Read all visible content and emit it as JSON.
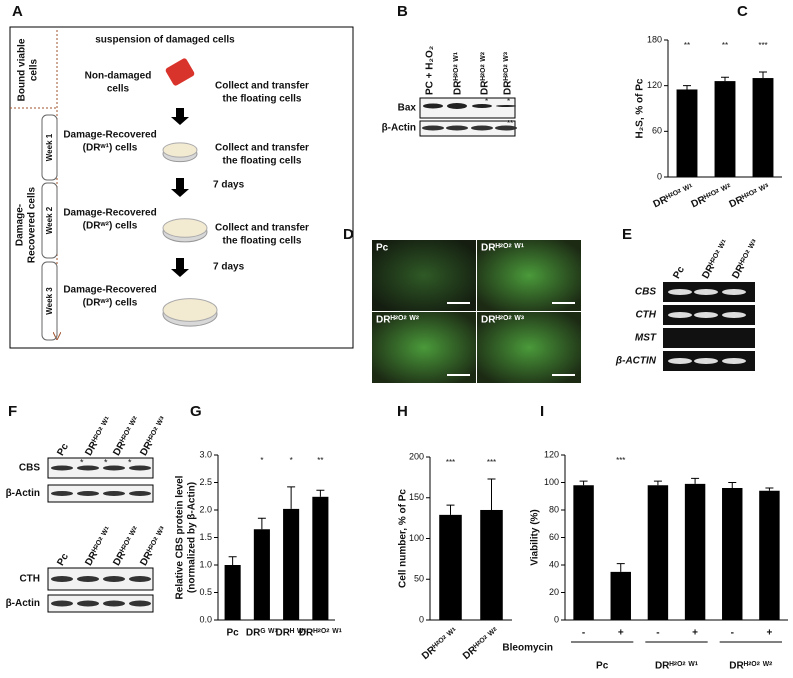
{
  "figure": {
    "A": {
      "label": "A",
      "header": "suspension of damaged cells",
      "side_top": [
        "Bound viable",
        "cells"
      ],
      "side_bottom": [
        "Damage-",
        "Recovered cells"
      ],
      "weeks": [
        "Week 1",
        "Week 2",
        "Week 3"
      ],
      "stages": [
        [
          "Non-damaged",
          "cells"
        ],
        [
          "Damage-Recovered",
          "(DRʷ¹) cells"
        ],
        [
          "Damage-Recovered",
          "(DRʷ²) cells"
        ],
        [
          "Damage-Recovered",
          "(DRʷ³) cells"
        ]
      ],
      "actions": [
        [
          "Collect and transfer",
          "the floating cells"
        ],
        [
          "Collect and transfer",
          "the floating cells"
        ],
        [
          "Collect and transfer",
          "the floating cells"
        ]
      ],
      "intervals": [
        "7 days",
        "7 days"
      ]
    },
    "B": {
      "label": "B",
      "lanes": [
        "PC + H₂O₂",
        "DRᴴ²ᴼ² ᵂ¹",
        "DRᴴ²ᴼ² ᵂ²",
        "DRᴴ²ᴼ² ᵂ³"
      ],
      "rows": [
        "Bax",
        "β-Actin"
      ],
      "marks": [
        "*",
        "*",
        "**"
      ]
    },
    "D": {
      "label": "D",
      "images": [
        "Pc",
        "DRᴴ²ᴼ² ᵂ¹",
        "DRᴴ²ᴼ² ᵂ²",
        "DRᴴ²ᴼ² ᵂ³"
      ]
    },
    "E": {
      "label": "E",
      "lanes": [
        "Pc",
        "DRᴴ²ᴼ² ᵂ¹",
        "DRᴴ²ᴼ² ᵂ³"
      ],
      "rows": [
        "CBS",
        "CTH",
        "MST",
        "β-ACTIN"
      ]
    },
    "F": {
      "label": "F",
      "lanes_top": [
        "Pc",
        "DRᴴ²ᴼ² ᵂ¹",
        "DRᴴ²ᴼ² ᵂ²",
        "DRᴴ²ᴼ² ᵂ³"
      ],
      "rows_top": [
        "CBS",
        "β-Actin"
      ],
      "marks": [
        "*",
        "*",
        "*"
      ],
      "lanes_bottom": [
        "Pc",
        "DRᴴ²ᴼ² ᵂ¹",
        "DRᴴ²ᴼ² ᵂ²",
        "DRᴴ²ᴼ² ᵂ³"
      ],
      "rows_bottom": [
        "CTH",
        "β-Actin"
      ]
    }
  },
  "chart_data": [
    {
      "panel": "C",
      "type": "bar",
      "ylabel": "H₂S, % of Pc",
      "categories": [
        "DRᴴ²ᴼ² ᵂ¹",
        "DRᴴ²ᴼ² ᵂ²",
        "DRᴴ²ᴼ² ᵂ³"
      ],
      "values": [
        115,
        126,
        130
      ],
      "errors": [
        5,
        5,
        8
      ],
      "annotations": [
        "**",
        "**",
        "***"
      ],
      "color": "#000000",
      "ylim": [
        0,
        180
      ],
      "yticks": [
        0,
        60,
        120,
        180
      ]
    },
    {
      "panel": "G",
      "type": "bar",
      "ylabel": [
        "Relative CBS protein level",
        "(normalized by β-Actin)"
      ],
      "categories": [
        "Pc",
        "DRᴳ ᵂ¹",
        "DRᴴ ᵂ¹",
        "DRᴴ²ᴼ² ᵂ¹"
      ],
      "values": [
        1.0,
        1.65,
        2.02,
        2.24
      ],
      "errors": [
        0.15,
        0.2,
        0.4,
        0.12
      ],
      "annotations": [
        null,
        "*",
        "*",
        "**"
      ],
      "color": "#000000",
      "ylim": [
        0,
        3
      ],
      "yticks": [
        {
          "value": 0,
          "label": "0.0"
        },
        0.5,
        {
          "value": 1,
          "label": "1.0"
        },
        1.5,
        {
          "value": 2,
          "label": "2.0"
        },
        2.5,
        {
          "value": 3,
          "label": "3.0"
        }
      ]
    },
    {
      "panel": "H",
      "type": "bar",
      "ylabel": "Cell number, % of Pc",
      "categories": [
        "DRᴴ²ᴼ² ᵂ¹",
        "DRᴴ²ᴼ² ᵂ²"
      ],
      "values": [
        129,
        135
      ],
      "errors": [
        12,
        38
      ],
      "annotations": [
        "***",
        "***"
      ],
      "color": "#000000",
      "ylim": [
        0,
        200
      ],
      "yticks": [
        0,
        50,
        100,
        150,
        200
      ]
    },
    {
      "panel": "I",
      "type": "bar",
      "ylabel": "Viability (%)",
      "categories": [
        "-",
        "+",
        "-",
        "+",
        "-",
        "+"
      ],
      "values": [
        98,
        35,
        98,
        99,
        96,
        94
      ],
      "errors": [
        3,
        6,
        3,
        4,
        4,
        2
      ],
      "annotations": [
        null,
        "***",
        null,
        null,
        null,
        null
      ],
      "color": "#000000",
      "xlabel": "Bleomycin",
      "group_labels": [
        "Pc",
        "DRᴴ²ᴼ² ᵂ¹",
        "DRᴴ²ᴼ² ᵂ²"
      ],
      "ylim": [
        0,
        120
      ],
      "yticks": [
        0,
        20,
        40,
        60,
        80,
        100,
        120
      ]
    }
  ]
}
